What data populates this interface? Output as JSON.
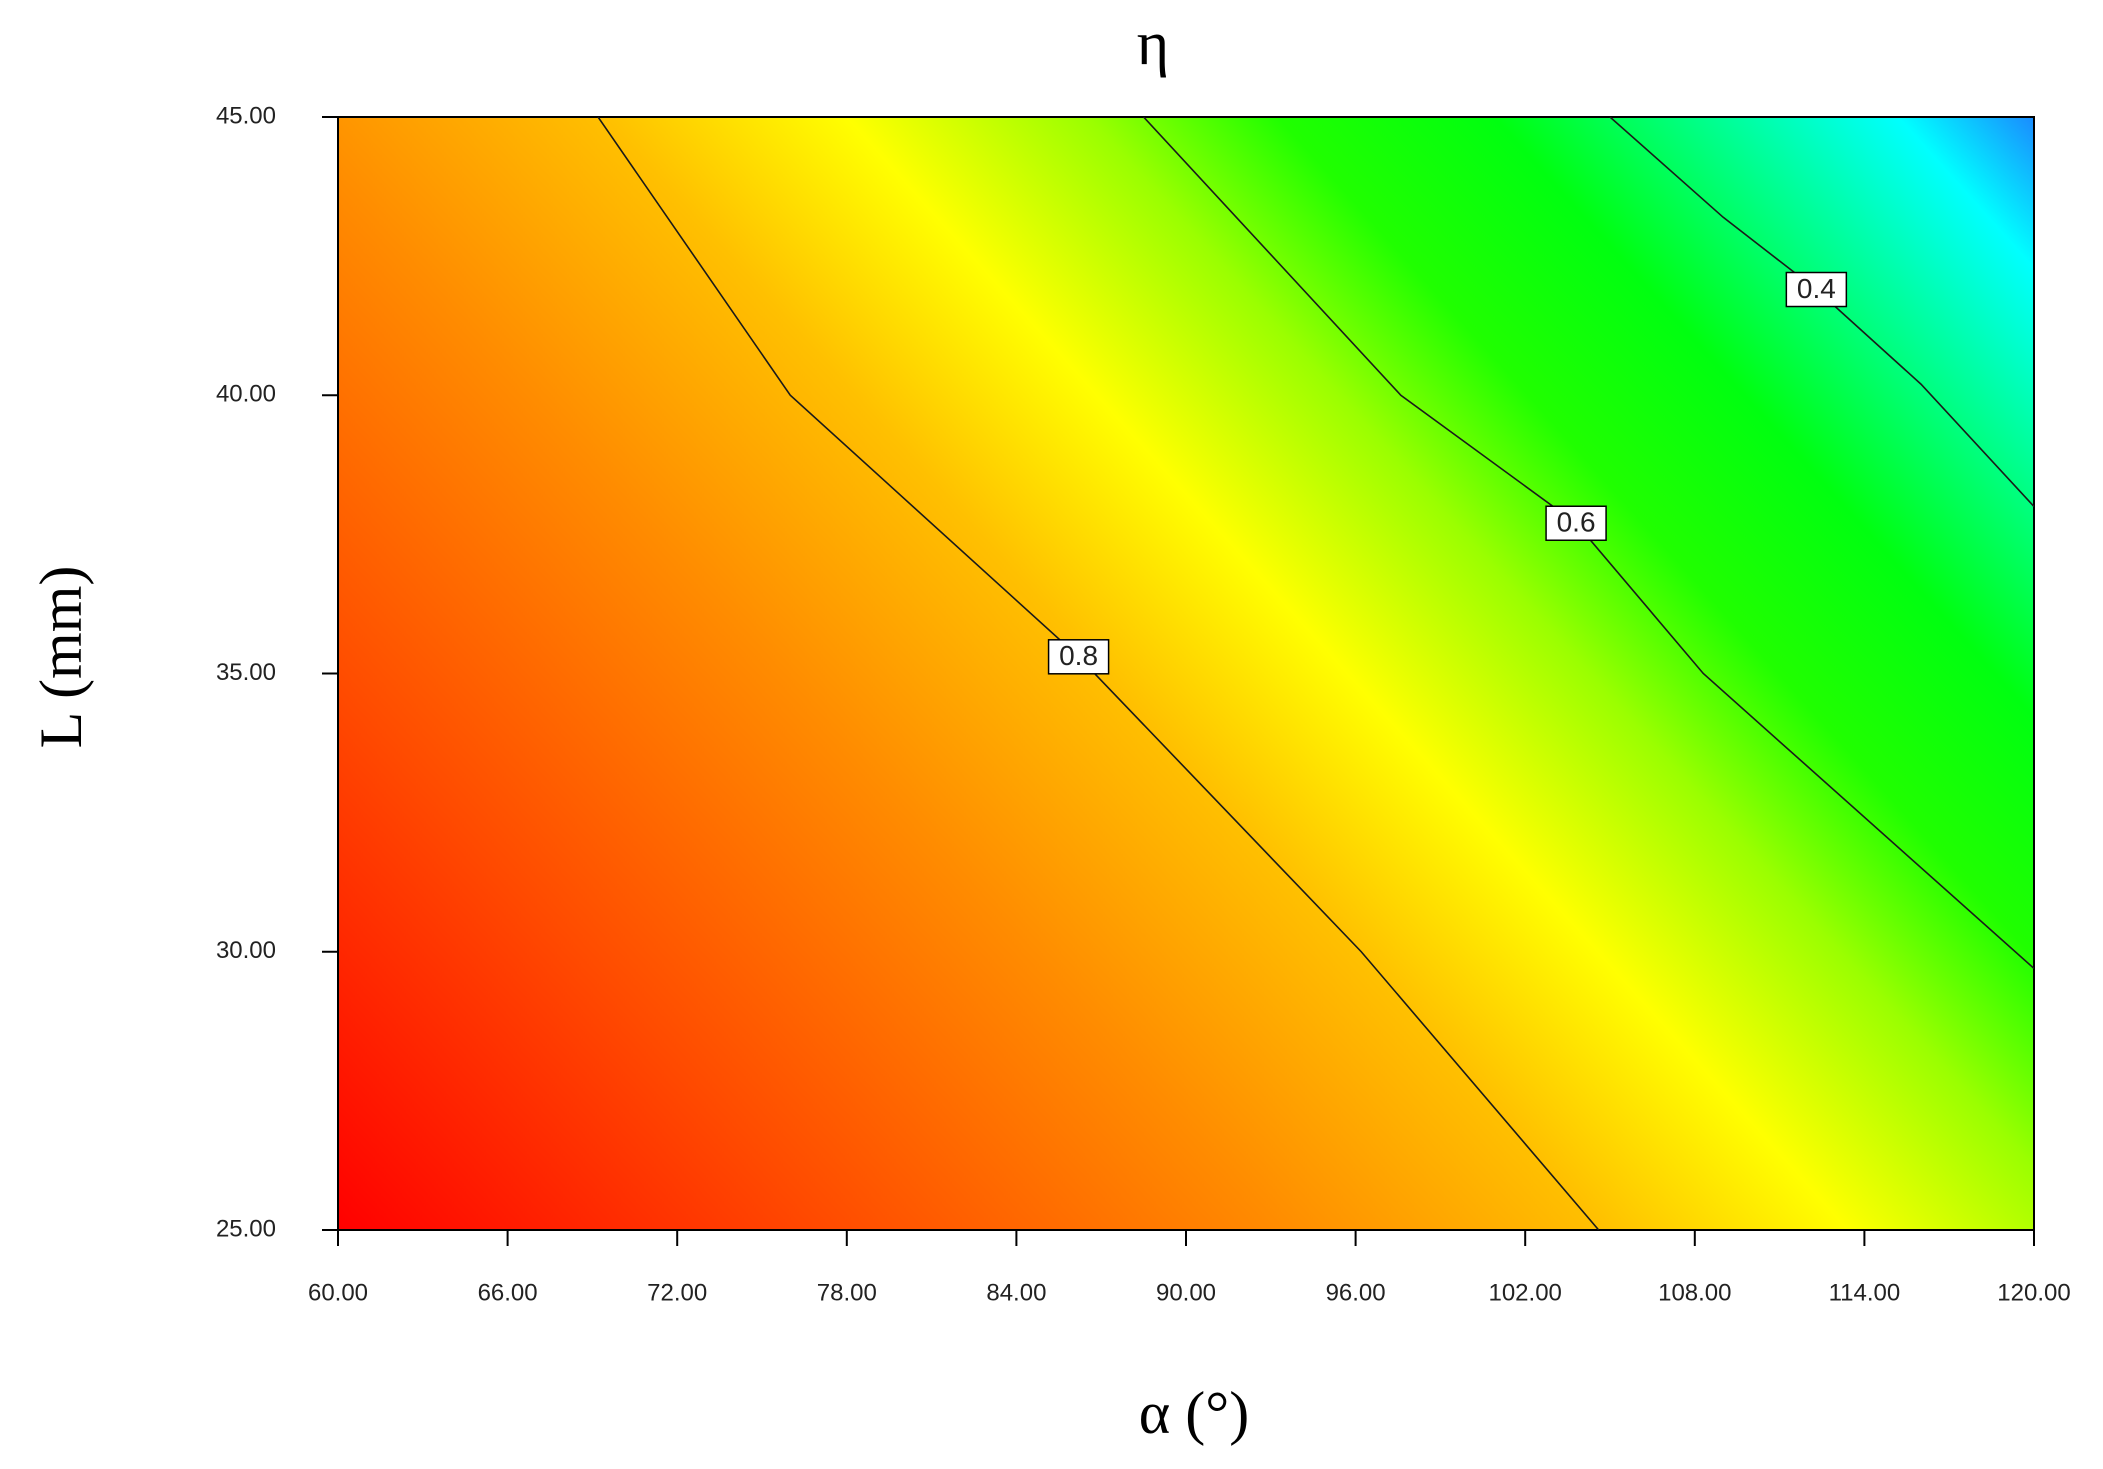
{
  "chart_data": {
    "type": "contour",
    "title": "η",
    "xlabel": "α (°)",
    "ylabel": "L (mm)",
    "xlim": [
      60,
      120
    ],
    "xticks": [
      {
        "value": 60,
        "label": "60.00"
      },
      {
        "value": 66,
        "label": "66.00"
      },
      {
        "value": 72,
        "label": "72.00"
      },
      {
        "value": 78,
        "label": "78.00"
      },
      {
        "value": 84,
        "label": "84.00"
      },
      {
        "value": 90,
        "label": "90.00"
      },
      {
        "value": 96,
        "label": "96.00"
      },
      {
        "value": 102,
        "label": "102.00"
      },
      {
        "value": 108,
        "label": "108.00"
      },
      {
        "value": 114,
        "label": "114.00"
      },
      {
        "value": 120,
        "label": "120.00"
      }
    ],
    "ylim": [
      25,
      45
    ],
    "yticks": [
      {
        "value": 25,
        "label": "25.00"
      },
      {
        "value": 30,
        "label": "30.00"
      },
      {
        "value": 35,
        "label": "35.00"
      },
      {
        "value": 40,
        "label": "40.00"
      },
      {
        "value": 45,
        "label": "45.00"
      }
    ],
    "contours": [
      {
        "level": 0.8,
        "x": [
          69.2,
          76,
          86.2,
          96.2,
          104.6
        ],
        "y": [
          45,
          40,
          35.3,
          30,
          25
        ]
      },
      {
        "level": 0.6,
        "x": [
          88.5,
          97.6,
          103.8,
          108.3,
          120
        ],
        "y": [
          45,
          40,
          37.7,
          35,
          29.7
        ]
      },
      {
        "level": 0.4,
        "x": [
          105,
          109,
          112.3,
          116,
          120
        ],
        "y": [
          45,
          43.2,
          41.9,
          40.2,
          38
        ]
      }
    ]
  }
}
